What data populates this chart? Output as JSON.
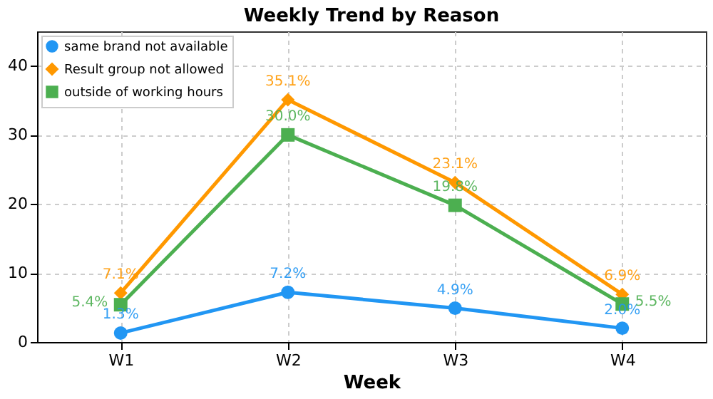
{
  "chart_data": {
    "type": "line",
    "title": "Weekly Trend by Reason",
    "xlabel": "Week",
    "categories": [
      "W1",
      "W2",
      "W3",
      "W4"
    ],
    "series": [
      {
        "name": "same brand not available",
        "color": "#2196f3",
        "marker": "circle",
        "values": [
          1.3,
          7.2,
          4.9,
          2.0
        ],
        "value_labels": [
          "1.3%",
          "7.2%",
          "4.9%",
          "2.0%"
        ]
      },
      {
        "name": "Result group not allowed",
        "color": "#ff9800",
        "marker": "diamond",
        "values": [
          7.1,
          35.1,
          23.1,
          6.9
        ],
        "value_labels": [
          "7.1%",
          "35.1%",
          "23.1%",
          "6.9%"
        ]
      },
      {
        "name": "outside of working hours",
        "color": "#4caf50",
        "marker": "square",
        "values": [
          5.4,
          30.0,
          19.8,
          5.5
        ],
        "value_labels": [
          "5.4%",
          "30.0%",
          "19.8%",
          "5.5%"
        ]
      }
    ],
    "ylim": [
      0,
      45
    ],
    "yticks": [
      0,
      10,
      20,
      30,
      40
    ],
    "grid": true,
    "legend": "top left",
    "line_style": "solid"
  }
}
